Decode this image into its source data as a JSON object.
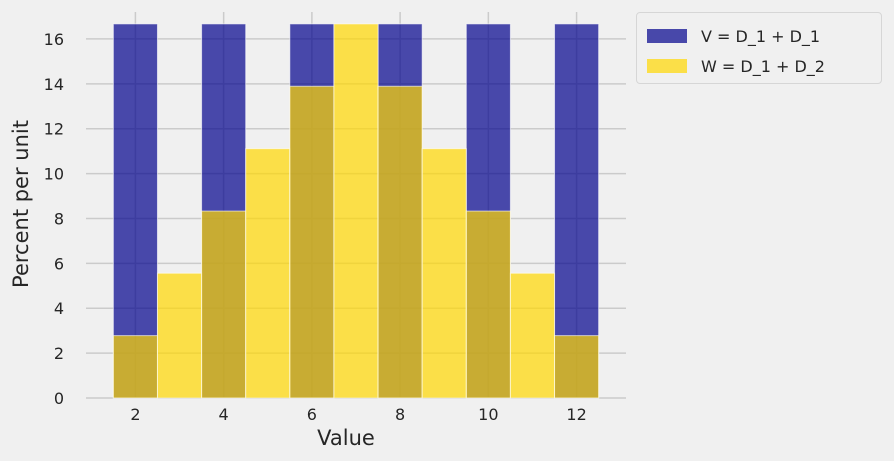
{
  "chart_data": {
    "type": "bar",
    "bin_edges": [
      1.5,
      2.5,
      3.5,
      4.5,
      5.5,
      6.5,
      7.5,
      8.5,
      9.5,
      10.5,
      11.5,
      12.5
    ],
    "bin_centers": [
      2,
      3,
      4,
      5,
      6,
      7,
      8,
      9,
      10,
      11,
      12
    ],
    "series": [
      {
        "name": "V = D_1 + D_1",
        "values": [
          16.67,
          0,
          16.67,
          0,
          16.67,
          0,
          16.67,
          0,
          16.67,
          0,
          16.67
        ],
        "color": "#00008b"
      },
      {
        "name": "W = D_1 + D_2",
        "values": [
          2.78,
          5.56,
          8.33,
          11.11,
          13.89,
          16.67,
          13.89,
          11.11,
          8.33,
          5.56,
          2.78
        ],
        "color": "#ffd700"
      }
    ],
    "xlabel": "Value",
    "ylabel": "Percent per unit",
    "xlim": [
      0.88,
      13.12
    ],
    "ylim": [
      0,
      17.2
    ],
    "xticks": [
      2,
      4,
      6,
      8,
      10,
      12
    ],
    "yticks": [
      0,
      2,
      4,
      6,
      8,
      10,
      12,
      14,
      16
    ],
    "grid": true,
    "legend_position": "outside-top-right"
  }
}
